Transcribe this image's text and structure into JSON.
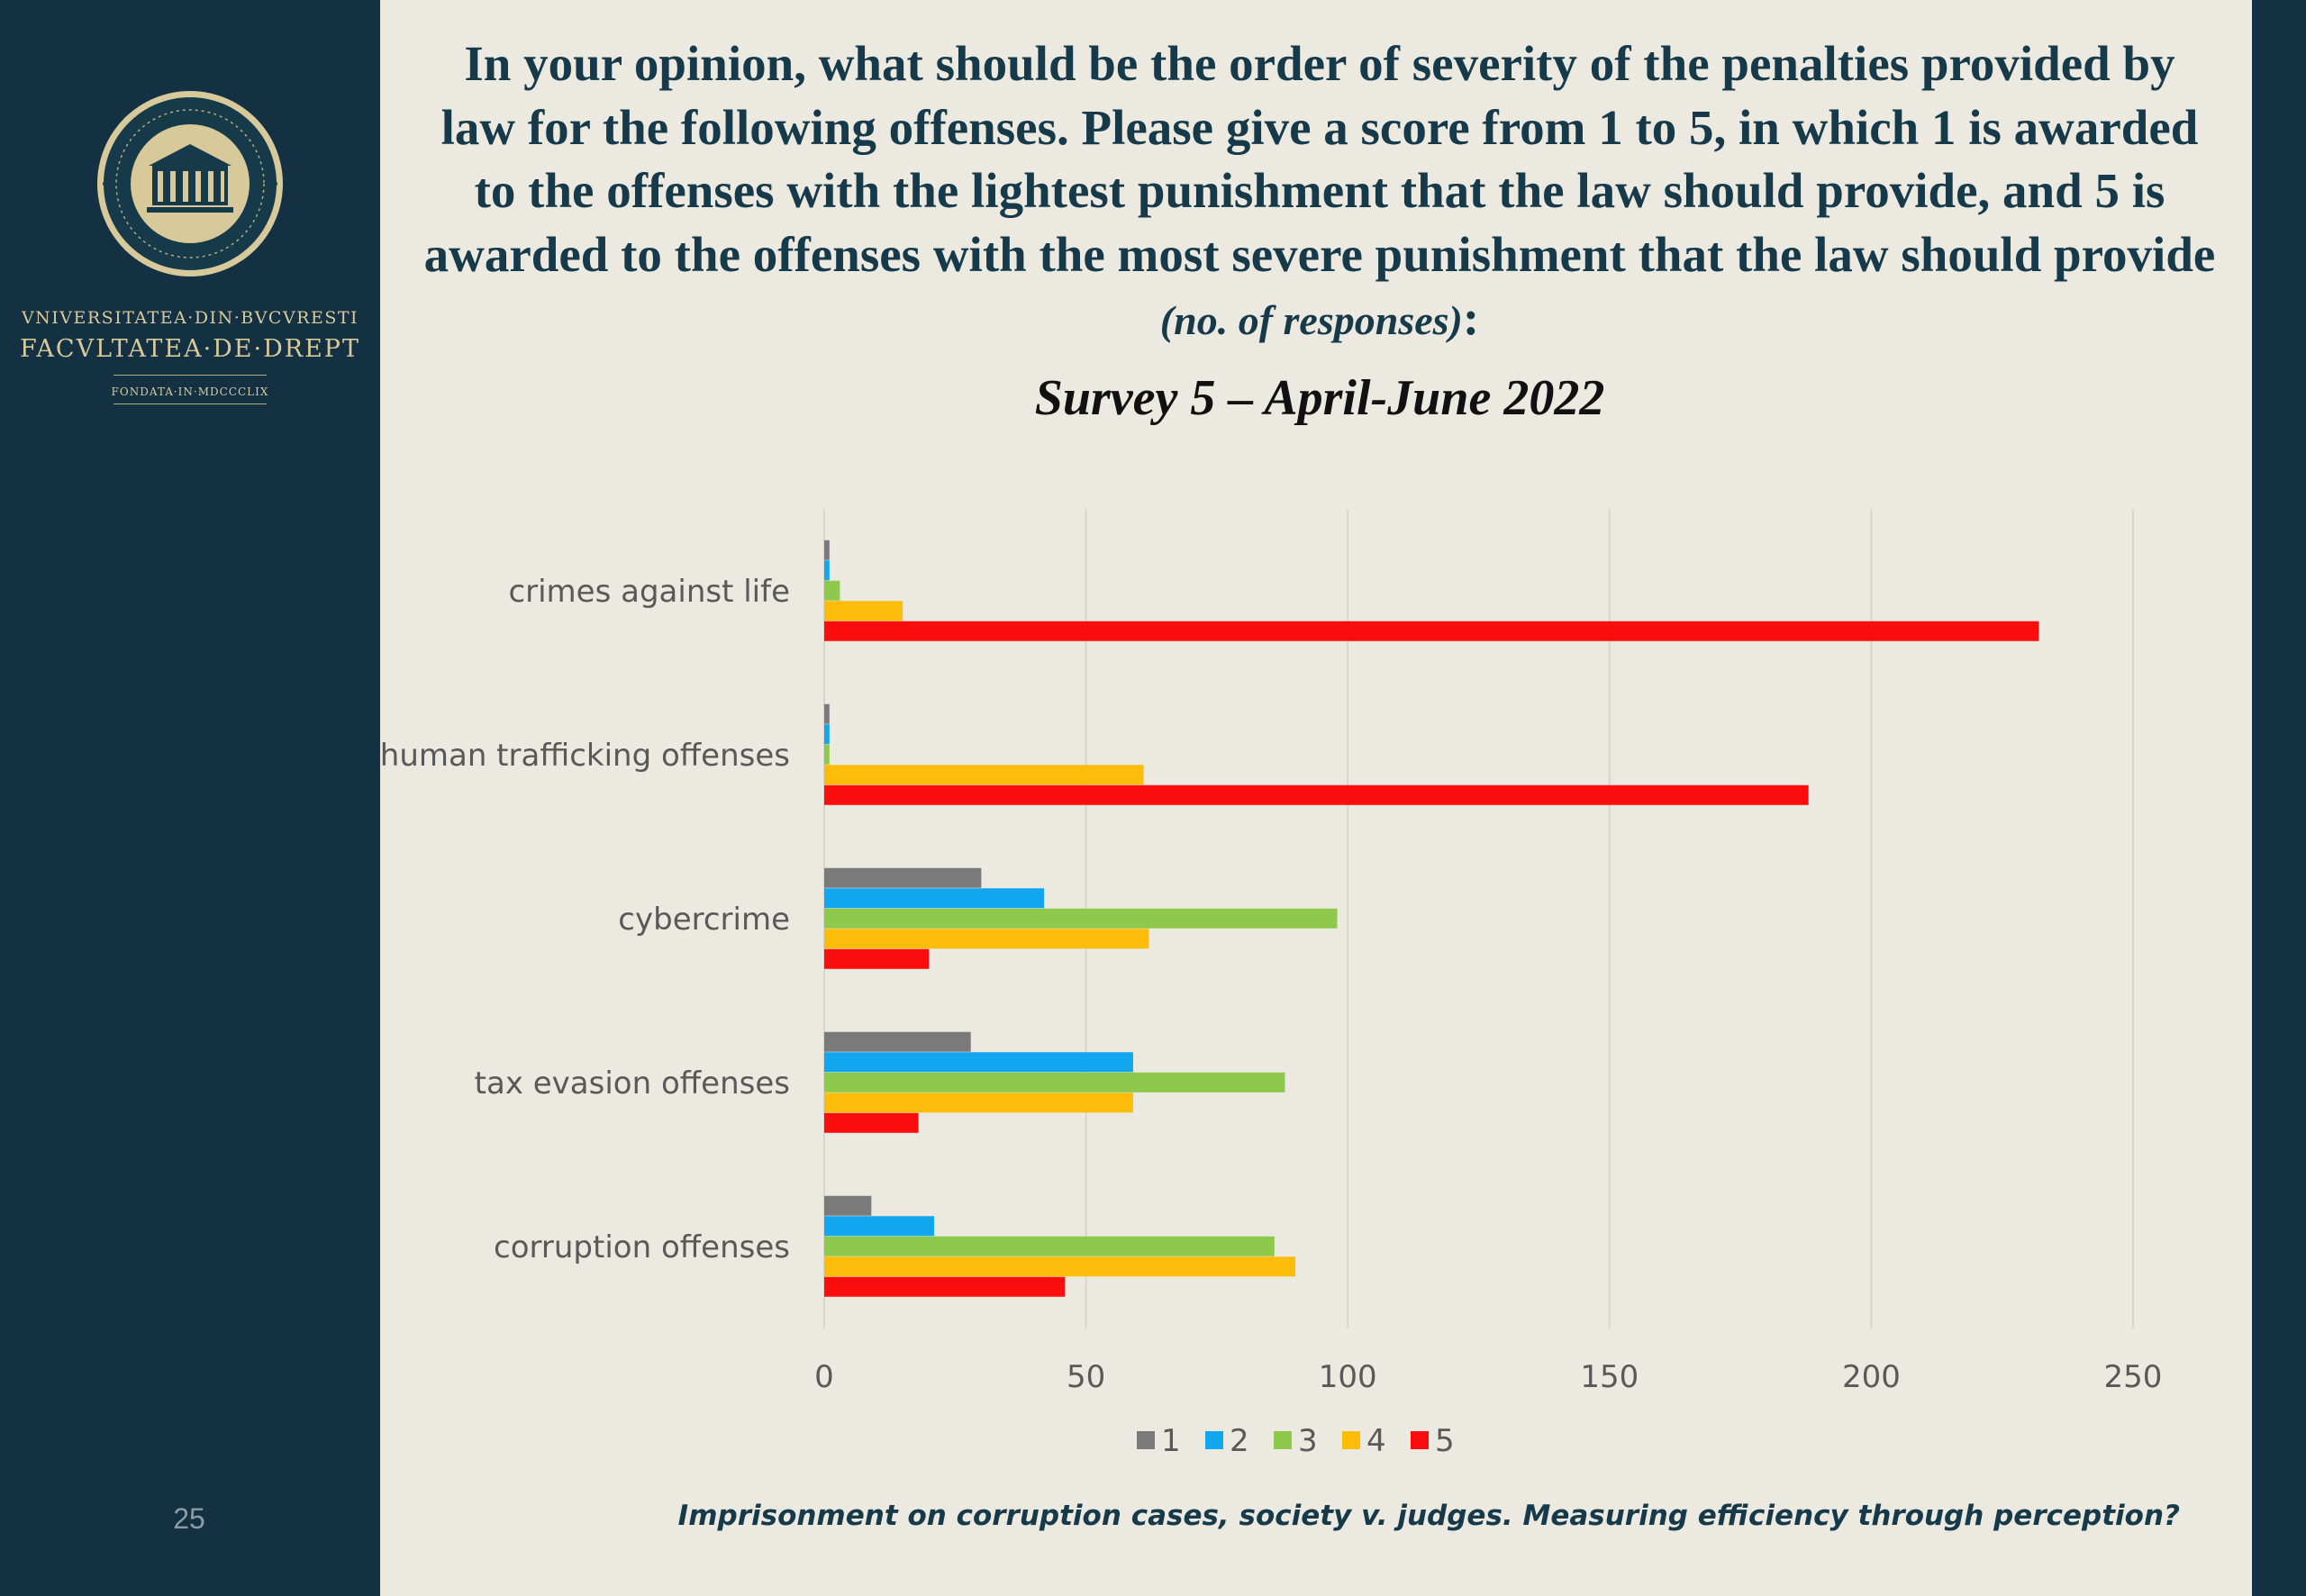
{
  "slide": {
    "title_main": "In your opinion, what should be the order of severity of the penalties provided by law for the following offenses. Please give a score from 1 to 5, in which 1 is awarded to the offenses with the lightest punishment that the law should provide, and 5 is awarded to the offenses with the most severe punishment that the law should provide ",
    "title_note": "(no. of responses)",
    "title_end": ":",
    "subtitle": "Survey 5 – April-June 2022",
    "footer": "Imprisonment on corruption cases, society v. judges. Measuring efficiency through perception?",
    "page_number": "25"
  },
  "sidebar": {
    "brand_line1": "VNIVERSITATEA·DIN·BVCVRESTI",
    "brand_line2": "FACVLTATEA·DE·DREPT",
    "brand_line3": "FONDATA·IN·MDCCCLIX",
    "seal_icon": "university-seal-icon"
  },
  "colors": {
    "sidebar": "#133143",
    "background": "#ece9e0",
    "title": "#163a4a"
  },
  "chart_data": {
    "type": "bar",
    "orientation": "horizontal",
    "categories": [
      "crimes against life",
      "human trafficking offenses",
      "cybercrime",
      "tax evasion offenses",
      "corruption offenses"
    ],
    "series": [
      {
        "name": "1",
        "color": "#7a7a7a",
        "values": [
          1,
          1,
          30,
          28,
          9
        ]
      },
      {
        "name": "2",
        "color": "#12a6ee",
        "values": [
          1,
          1,
          42,
          59,
          21
        ]
      },
      {
        "name": "3",
        "color": "#8ec94c",
        "values": [
          3,
          1,
          98,
          88,
          86
        ]
      },
      {
        "name": "4",
        "color": "#fbbd0a",
        "values": [
          15,
          61,
          62,
          59,
          90
        ]
      },
      {
        "name": "5",
        "color": "#fb0d0d",
        "values": [
          232,
          188,
          20,
          18,
          46
        ]
      }
    ],
    "xlim": [
      0,
      250
    ],
    "xticks": [
      "0",
      "50",
      "100",
      "150",
      "200",
      "250"
    ],
    "grid": true,
    "legend_position": "bottom",
    "xlabel": "",
    "ylabel": ""
  }
}
